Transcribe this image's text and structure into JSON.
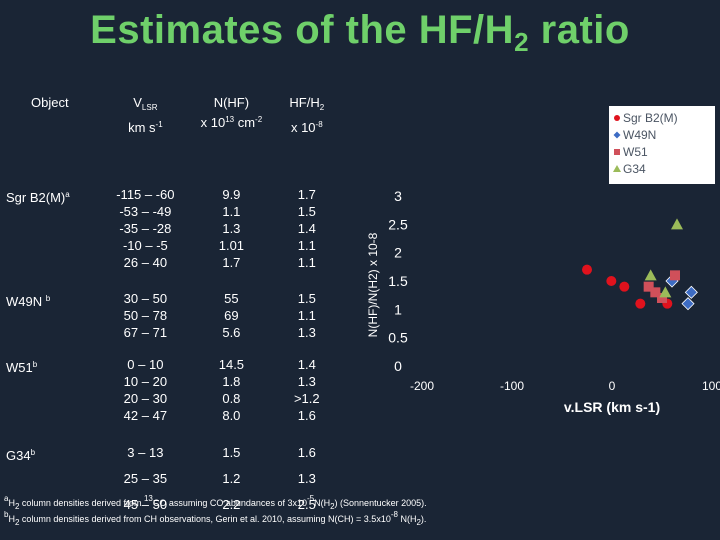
{
  "title": {
    "main": "Estimates of the HF/H",
    "sub": "2",
    "tail": " ratio"
  },
  "table": {
    "headers": {
      "object": "Object",
      "vlsr_v": "V",
      "vlsr_sub": "LSR",
      "vlsr_unit": "km s",
      "vlsr_unit_sup": "-1",
      "nhf": "N(HF)",
      "nhf_unit": "x 10",
      "nhf_unit_sup": "13",
      "nhf_unit_tail": " cm",
      "nhf_unit_sup2": "-2",
      "ratio": "HF/H",
      "ratio_sub": "2",
      "ratio_unit": "x 10",
      "ratio_unit_sup": "-8"
    },
    "rows": [
      {
        "object": "Sgr B2(M)",
        "note": "a",
        "vlsr": [
          "-115 – -60",
          "-53 – -49",
          "-35 – -28",
          "-10 – -5",
          "26 – 40"
        ],
        "nhf": [
          "9.9",
          "1.1",
          "1.3",
          "1.01",
          "1.7"
        ],
        "ratio": [
          "1.7",
          "1.5",
          "1.4",
          "1.1",
          "1.1"
        ]
      },
      {
        "object": "W49N",
        "note": "b",
        "vlsr": [
          "30 – 50",
          "50 – 78",
          "67 – 71"
        ],
        "nhf": [
          "55",
          "69",
          "5.6"
        ],
        "ratio": [
          "1.5",
          "1.1",
          "1.3"
        ]
      },
      {
        "object": "W51",
        "note": "b",
        "vlsr": [
          "0 – 10",
          "10 – 20",
          "20 – 30",
          "42 – 47"
        ],
        "nhf": [
          "14.5",
          "1.8",
          "0.8",
          "8.0"
        ],
        "ratio": [
          "1.4",
          "1.3",
          ">1.2",
          "1.6"
        ]
      },
      {
        "object": "G34",
        "note": "b",
        "vlsr": [
          "3 – 13",
          "25 – 35",
          "45 – 50"
        ],
        "nhf": [
          "1.5",
          "1.2",
          "2.2"
        ],
        "ratio": [
          "1.6",
          "1.3",
          "2.5"
        ]
      }
    ]
  },
  "footnotes": {
    "a_mark": "a",
    "a_h": "H",
    "a_h_sub": "2",
    "a_text1": " column densities derived from ",
    "a_iso_sup": "13",
    "a_text2": "CO assuming CO abundances of 3x10",
    "a_exp": "-5",
    "a_text3": "N(H",
    "a_text3_sub": "2",
    "a_text4": ") (Sonnentucker 2005).",
    "b_mark": "b",
    "b_h": "H",
    "b_h_sub": "2",
    "b_text1": "  column densities derived from CH observations, Gerin et al. 2010,  assuming N(CH) = 3.5x10",
    "b_exp": "-8",
    "b_text2": " N(H",
    "b_text2_sub": "2",
    "b_text3": ")."
  },
  "chart_data": {
    "type": "scatter",
    "xlabel": "v.LSR (km s-1)",
    "ylabel": "N(HF)/N(H2) x 10-8",
    "xlim": [
      -200,
      100
    ],
    "ylim": [
      0,
      3
    ],
    "xticks": [
      "-200",
      "-100",
      "0",
      "100"
    ],
    "yticks": [
      "0",
      "0.5",
      "1",
      "1.5",
      "2",
      "2.5",
      "3"
    ],
    "legend_position": "top-right",
    "series": [
      {
        "name": "Sgr B2(M)",
        "marker": "circle",
        "color": "#e0121d",
        "x": [
          -87.5,
          -51,
          -31.5,
          -7.5,
          33
        ],
        "y": [
          1.7,
          1.5,
          1.4,
          1.1,
          1.1
        ]
      },
      {
        "name": "W49N",
        "marker": "diamond",
        "color": "#3d6cc4",
        "x": [
          40,
          64,
          69
        ],
        "y": [
          1.5,
          1.1,
          1.3
        ]
      },
      {
        "name": "W51",
        "marker": "square",
        "color": "#d0505a",
        "x": [
          5,
          15,
          25,
          44.5
        ],
        "y": [
          1.4,
          1.3,
          1.2,
          1.6
        ]
      },
      {
        "name": "G34",
        "marker": "triangle",
        "color": "#9bbb59",
        "x": [
          8,
          30,
          47.5
        ],
        "y": [
          1.6,
          1.3,
          2.5
        ]
      }
    ]
  }
}
